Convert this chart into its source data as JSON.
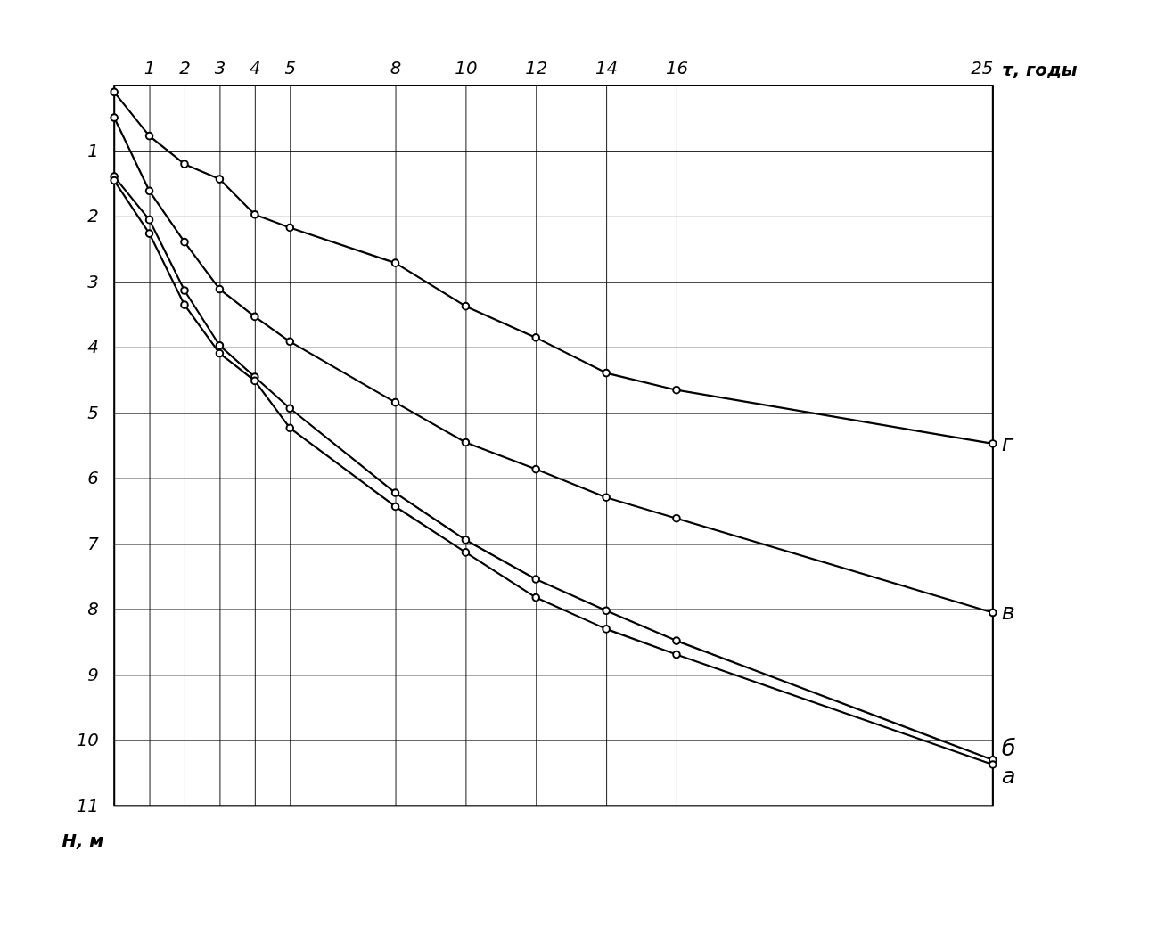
{
  "chart_data": {
    "type": "line",
    "xlabel": "τ, годы",
    "ylabel": "H, м",
    "x": [
      0,
      1,
      2,
      3,
      4,
      5,
      8,
      10,
      12,
      14,
      16,
      25
    ],
    "series": [
      {
        "name": "г",
        "color": "#000000",
        "values": [
          0.1,
          0.77,
          1.2,
          1.43,
          1.97,
          2.17,
          2.71,
          3.37,
          3.85,
          4.39,
          4.65,
          5.47
        ]
      },
      {
        "name": "в",
        "color": "#000000",
        "values": [
          0.49,
          1.61,
          2.39,
          3.11,
          3.53,
          3.91,
          4.84,
          5.45,
          5.86,
          6.29,
          6.61,
          8.05
        ]
      },
      {
        "name": "б",
        "color": "#000000",
        "values": [
          1.39,
          2.05,
          3.13,
          3.97,
          4.45,
          4.93,
          6.22,
          6.94,
          7.54,
          8.02,
          8.48,
          10.3
        ]
      },
      {
        "name": "а",
        "color": "#000000",
        "values": [
          1.45,
          2.26,
          3.35,
          4.09,
          4.51,
          5.23,
          6.43,
          7.13,
          7.82,
          8.3,
          8.69,
          10.37
        ]
      }
    ],
    "xlim": [
      0,
      25
    ],
    "xticks": [
      1,
      2,
      3,
      4,
      5,
      8,
      10,
      12,
      14,
      16,
      25
    ],
    "ylim": [
      11,
      0
    ],
    "yticks": [
      1,
      2,
      3,
      4,
      5,
      6,
      7,
      8,
      9,
      10,
      11
    ],
    "grid": true,
    "legend": false,
    "marker": "circle",
    "line_style": "solid"
  }
}
